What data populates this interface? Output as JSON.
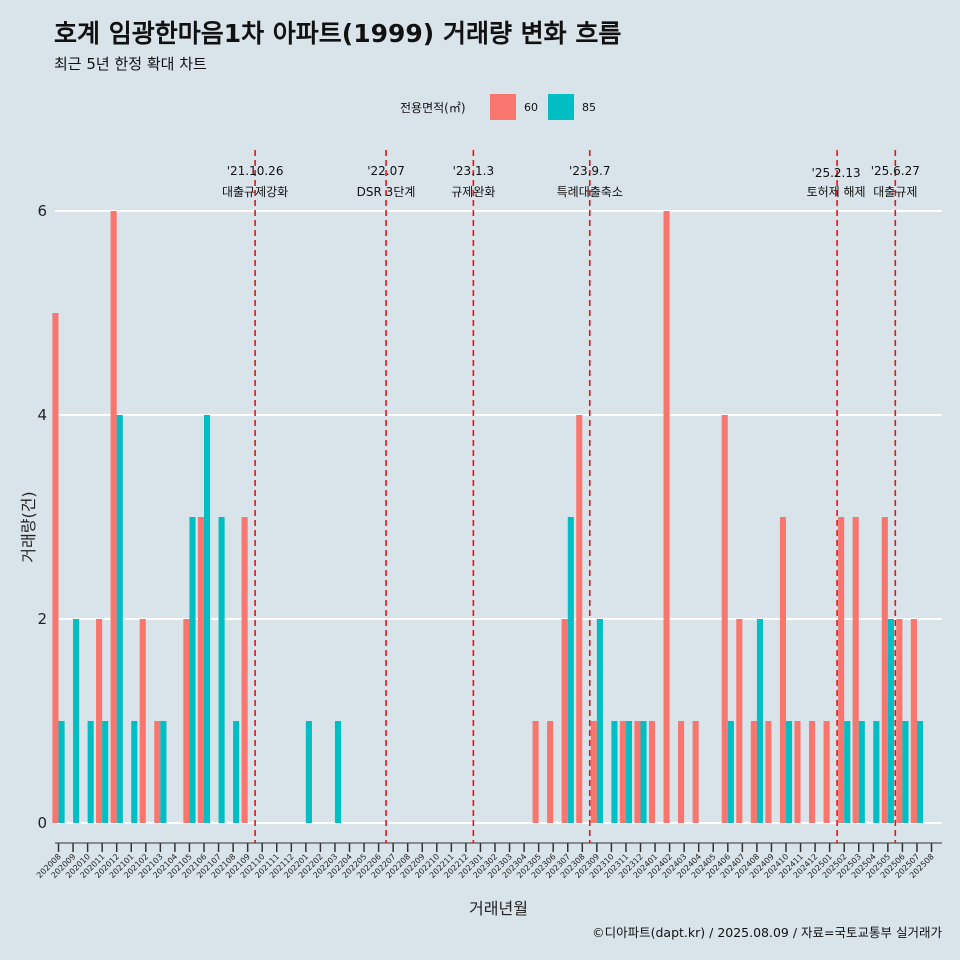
{
  "title": "호계 임광한마음1차 아파트(1999) 거래량 변화 흐름",
  "subtitle": "최근 5년 한정 확대 차트",
  "legend": {
    "title": "전용면적(㎡)",
    "items": [
      {
        "label": "60",
        "color": "#F8766D"
      },
      {
        "label": "85",
        "color": "#00BFC4"
      }
    ]
  },
  "caption": "©디아파트(dapt.kr) / 2025.08.09 / 자료=국토교통부 실거래가",
  "colors": {
    "background": "#d8e4ea",
    "grid": "#ffffff",
    "event_line": "#ee1111",
    "area_60": "#F8766D",
    "area_85": "#00BFC4"
  },
  "chart_data": {
    "type": "bar",
    "xlabel": "거래년월",
    "ylabel": "거래량(건)",
    "ylim": [
      0,
      6
    ],
    "yticks": [
      0,
      2,
      4,
      6
    ],
    "grid": true,
    "legend_position": "top",
    "categories": [
      "202008",
      "202009",
      "202010",
      "202011",
      "202012",
      "202101",
      "202102",
      "202103",
      "202104",
      "202105",
      "202106",
      "202107",
      "202108",
      "202109",
      "202110",
      "202111",
      "202112",
      "202201",
      "202202",
      "202203",
      "202204",
      "202205",
      "202206",
      "202207",
      "202208",
      "202209",
      "202210",
      "202211",
      "202212",
      "202301",
      "202302",
      "202303",
      "202304",
      "202305",
      "202306",
      "202307",
      "202308",
      "202309",
      "202310",
      "202311",
      "202312",
      "202401",
      "202402",
      "202403",
      "202404",
      "202405",
      "202406",
      "202407",
      "202408",
      "202409",
      "202410",
      "202411",
      "202412",
      "202501",
      "202502",
      "202503",
      "202504",
      "202505",
      "202506",
      "202507",
      "202508"
    ],
    "series": [
      {
        "name": "60",
        "color": "#F8766D",
        "values": [
          5,
          0,
          0,
          2,
          6,
          0,
          2,
          1,
          0,
          2,
          3,
          0,
          0,
          3,
          0,
          0,
          0,
          0,
          0,
          0,
          0,
          0,
          0,
          0,
          0,
          0,
          0,
          0,
          0,
          0,
          0,
          0,
          0,
          1,
          1,
          2,
          4,
          1,
          0,
          1,
          1,
          1,
          6,
          1,
          1,
          0,
          4,
          2,
          1,
          1,
          3,
          1,
          1,
          1,
          3,
          3,
          0,
          3,
          2,
          2,
          0
        ]
      },
      {
        "name": "85",
        "color": "#00BFC4",
        "values": [
          1,
          2,
          1,
          1,
          4,
          1,
          0,
          1,
          0,
          3,
          4,
          3,
          1,
          0,
          0,
          0,
          0,
          1,
          0,
          1,
          0,
          0,
          0,
          0,
          0,
          0,
          0,
          0,
          0,
          0,
          0,
          0,
          0,
          0,
          0,
          3,
          0,
          2,
          1,
          1,
          1,
          0,
          0,
          0,
          0,
          0,
          1,
          0,
          2,
          0,
          1,
          0,
          0,
          0,
          1,
          1,
          1,
          2,
          1,
          1,
          0
        ]
      }
    ],
    "events": [
      {
        "date": "'21.10.26",
        "label": "대출규제강화",
        "at": "202110"
      },
      {
        "date": "'22.07",
        "label": "DSR 3단계",
        "at": "202207"
      },
      {
        "date": "'23.1.3",
        "label": "규제완화",
        "at": "202301"
      },
      {
        "date": "'23.9.7",
        "label": "특례대출축소",
        "at": "202309"
      },
      {
        "date": "'25.2.13",
        "label": "토허제 해제",
        "at": "202502"
      },
      {
        "date": "'25.6.27",
        "label": "대출규제",
        "at": "202506"
      }
    ]
  }
}
